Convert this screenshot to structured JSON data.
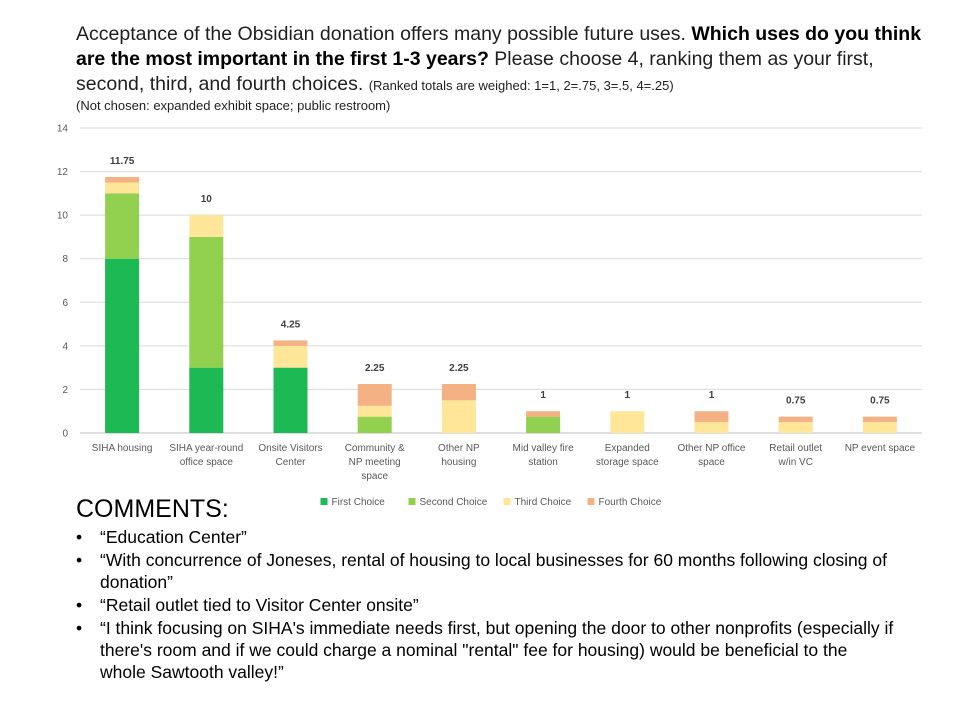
{
  "heading": {
    "intro": "Acceptance of the Obsidian donation offers many possible future uses.",
    "question": "Which uses do you think are the most important in the first 1-3 years?",
    "instruction": "Please choose 4, ranking them as your first, second, third, and fourth choices.",
    "weights": "(Ranked totals are weighed: 1=1, 2=.75, 3=.5, 4=.25)",
    "not_chosen": "(Not chosen: expanded exhibit space; public restroom)"
  },
  "chart_data": {
    "type": "bar",
    "stacked": true,
    "categories": [
      [
        "SIHA housing"
      ],
      [
        "SIHA year-round",
        "office space"
      ],
      [
        "Onsite Visitors",
        "Center"
      ],
      [
        "Community &",
        "NP meeting",
        "space"
      ],
      [
        "Other NP",
        "housing"
      ],
      [
        "Mid valley fire",
        "station"
      ],
      [
        "Expanded",
        "storage space"
      ],
      [
        "Other NP office",
        "space"
      ],
      [
        "Retail outlet",
        "w/in VC"
      ],
      [
        "NP event space"
      ]
    ],
    "series": [
      {
        "name": "First Choice",
        "color": "#1db954",
        "values": [
          8,
          3,
          3,
          0,
          0,
          0,
          0,
          0,
          0,
          0
        ]
      },
      {
        "name": "Second Choice",
        "color": "#92d050",
        "values": [
          3,
          6,
          0,
          0.75,
          0,
          0.75,
          0,
          0,
          0,
          0
        ]
      },
      {
        "name": "Third Choice",
        "color": "#ffe699",
        "values": [
          0.5,
          1,
          1,
          0.5,
          1.5,
          0,
          1,
          0.5,
          0.5,
          0.5
        ]
      },
      {
        "name": "Fourth Choice",
        "color": "#f4b183",
        "values": [
          0.25,
          0,
          0.25,
          1,
          0.75,
          0.25,
          0,
          0.5,
          0.25,
          0.25
        ]
      }
    ],
    "totals": [
      "11.75",
      "10",
      "4.25",
      "2.25",
      "2.25",
      "1",
      "1",
      "1",
      "0.75",
      "0.75"
    ],
    "ylim": [
      0,
      14
    ],
    "yticks": [
      "0",
      "2",
      "4",
      "6",
      "8",
      "10",
      "12",
      "14"
    ],
    "grid": true,
    "legend": "bottom"
  },
  "comments": {
    "title": "COMMENTS:",
    "items": [
      "“Education Center”",
      "“With concurrence of Joneses, rental of housing to local businesses for 60 months following closing of donation”",
      "“Retail outlet tied to Visitor Center onsite”",
      "“I think focusing on SIHA's immediate needs first, but opening the door to other nonprofits (especially if there's room and if we could charge a nominal \"rental\" fee for housing) would be beneficial to the whole Sawtooth valley!”"
    ]
  }
}
